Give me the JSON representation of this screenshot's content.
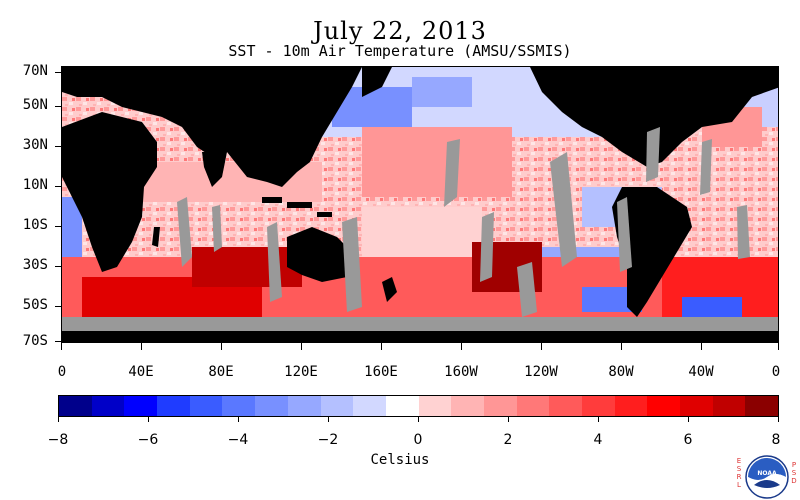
{
  "title": "July 22, 2013",
  "subtitle": "SST - 10m Air Temperature (AMSU/SSMIS)",
  "map": {
    "lat_labels": [
      "70N",
      "50N",
      "30N",
      "10N",
      "10S",
      "30S",
      "50S",
      "70S"
    ],
    "lon_labels": [
      "0",
      "40E",
      "80E",
      "120E",
      "160E",
      "160W",
      "120W",
      "80W",
      "40W",
      "0"
    ]
  },
  "colorbar": {
    "labels": [
      "−8",
      "−6",
      "−4",
      "−2",
      "0",
      "2",
      "4",
      "6",
      "8"
    ],
    "units": "Celsius",
    "colors": [
      "#00008b",
      "#0000c8",
      "#0000ff",
      "#1f3cff",
      "#3a5cff",
      "#5a78ff",
      "#7890ff",
      "#96a8ff",
      "#b4c0ff",
      "#d2d8ff",
      "#ffffff",
      "#ffd2d2",
      "#ffb4b4",
      "#ff9696",
      "#ff7878",
      "#ff5a5a",
      "#ff3c3c",
      "#ff1e1e",
      "#ff0000",
      "#e00000",
      "#c00000",
      "#8b0000"
    ]
  },
  "colors": {
    "land": "#000000",
    "no_data": "#999999"
  },
  "logo": {
    "left_letters": "ESRL",
    "right_letters": "PSD",
    "center_text": "NOAA"
  }
}
